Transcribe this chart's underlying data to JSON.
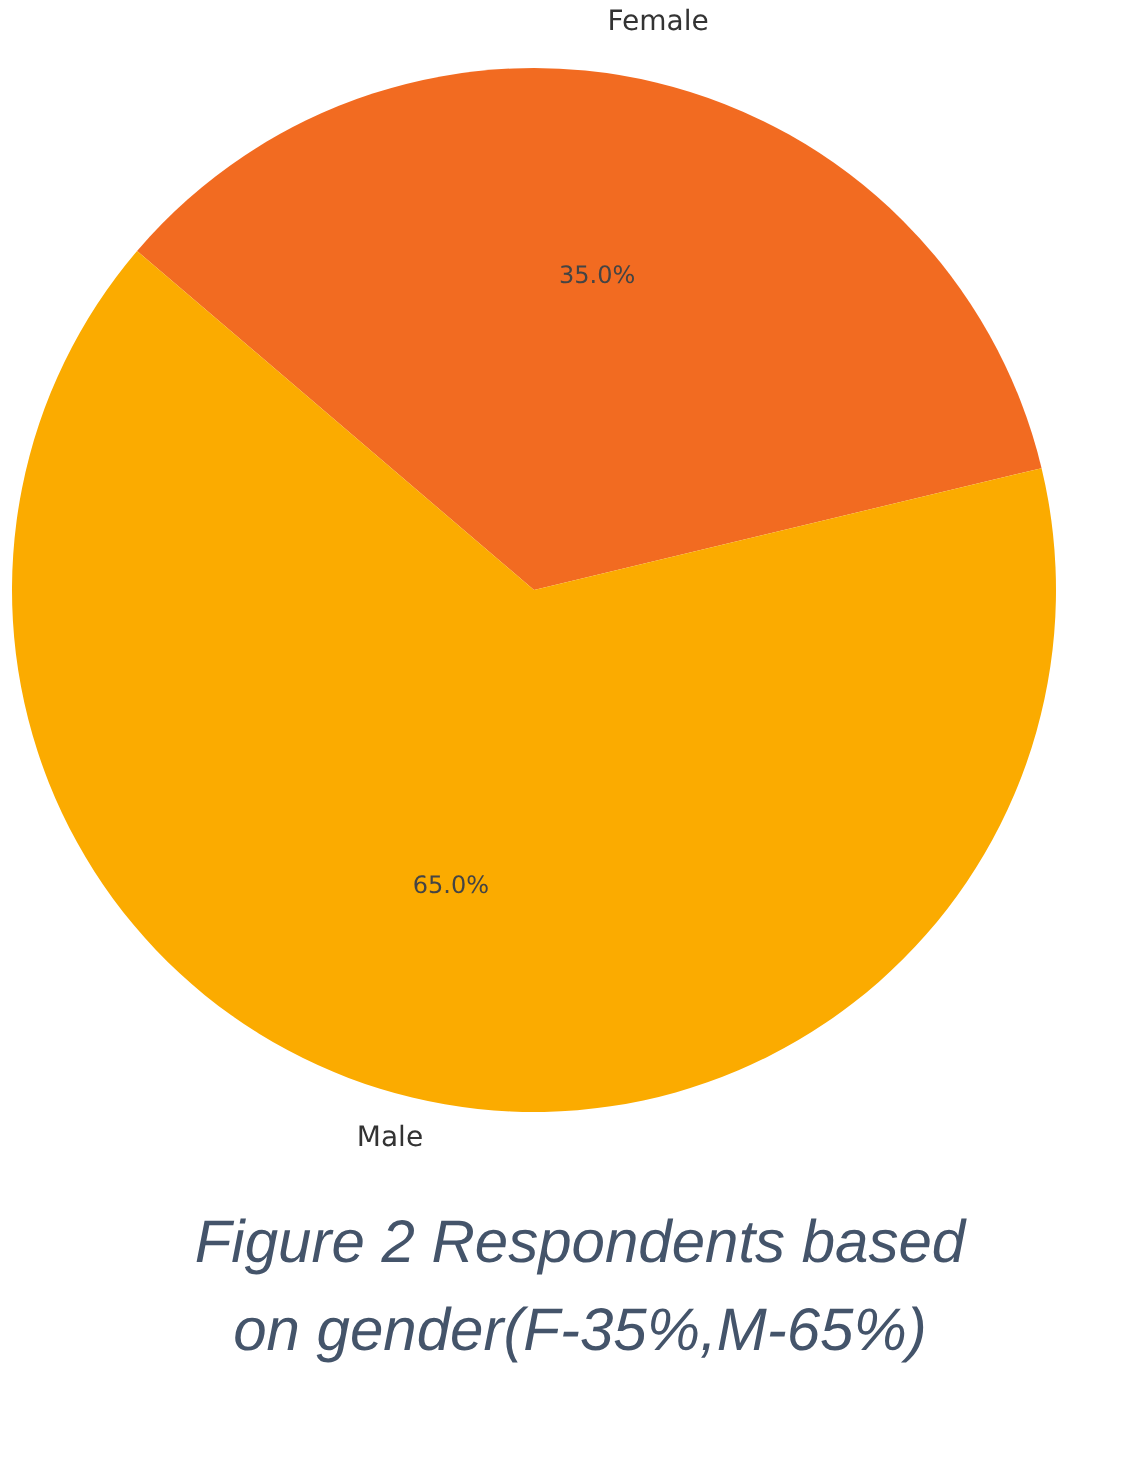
{
  "chart_data": {
    "type": "pie",
    "title": "Figure 2 Respondents based on gender(F-35%,M-65%)",
    "categories": [
      "Female",
      "Male"
    ],
    "values": [
      35,
      65
    ],
    "colors": [
      "#f26b21",
      "#fbab00"
    ],
    "value_labels": [
      "35.0%",
      "65.0%"
    ]
  }
}
